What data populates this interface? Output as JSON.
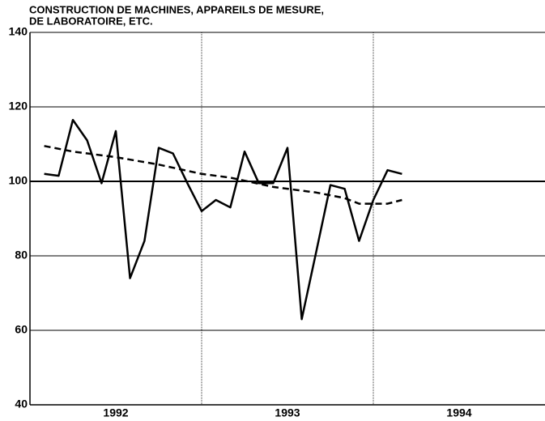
{
  "chart_data": {
    "type": "line",
    "title_lines": [
      "CONSTRUCTION DE MACHINES, APPAREILS DE MESURE,",
      "DE LABORATOIRE, ETC."
    ],
    "xlim": [
      1992,
      1995
    ],
    "xticks": [
      {
        "value": 1992.5,
        "label": "1992"
      },
      {
        "value": 1993.5,
        "label": "1993"
      },
      {
        "value": 1994.5,
        "label": "1994"
      }
    ],
    "x_gridlines": [
      1993,
      1994
    ],
    "ylim": [
      40,
      140
    ],
    "yticks": [
      40,
      60,
      80,
      100,
      120,
      140
    ],
    "reference_line": 100,
    "grid": true,
    "series": [
      {
        "color": "#000000",
        "style": "solid",
        "x": [
          1992.083,
          1992.167,
          1992.25,
          1992.333,
          1992.417,
          1992.5,
          1992.583,
          1992.667,
          1992.75,
          1992.833,
          1992.917,
          1993.0,
          1993.083,
          1993.167,
          1993.25,
          1993.333,
          1993.417,
          1993.5,
          1993.583,
          1993.667,
          1993.75,
          1993.833,
          1993.917,
          1994.0,
          1994.083,
          1994.167
        ],
        "values": [
          102,
          101.5,
          116.5,
          111,
          99.5,
          113.5,
          74,
          84,
          109,
          107.5,
          99.5,
          92,
          95,
          93,
          108,
          99.5,
          99.5,
          109,
          63,
          81,
          99,
          98,
          84,
          95,
          103,
          102
        ]
      },
      {
        "color": "#000000",
        "style": "dashed",
        "x": [
          1992.083,
          1992.25,
          1992.5,
          1992.75,
          1993.0,
          1993.167,
          1993.417,
          1993.667,
          1993.833,
          1993.917,
          1994.083,
          1994.167
        ],
        "values": [
          109.5,
          108,
          106.5,
          104.5,
          102,
          101,
          98.5,
          97,
          95.5,
          94,
          94,
          95
        ]
      }
    ]
  }
}
